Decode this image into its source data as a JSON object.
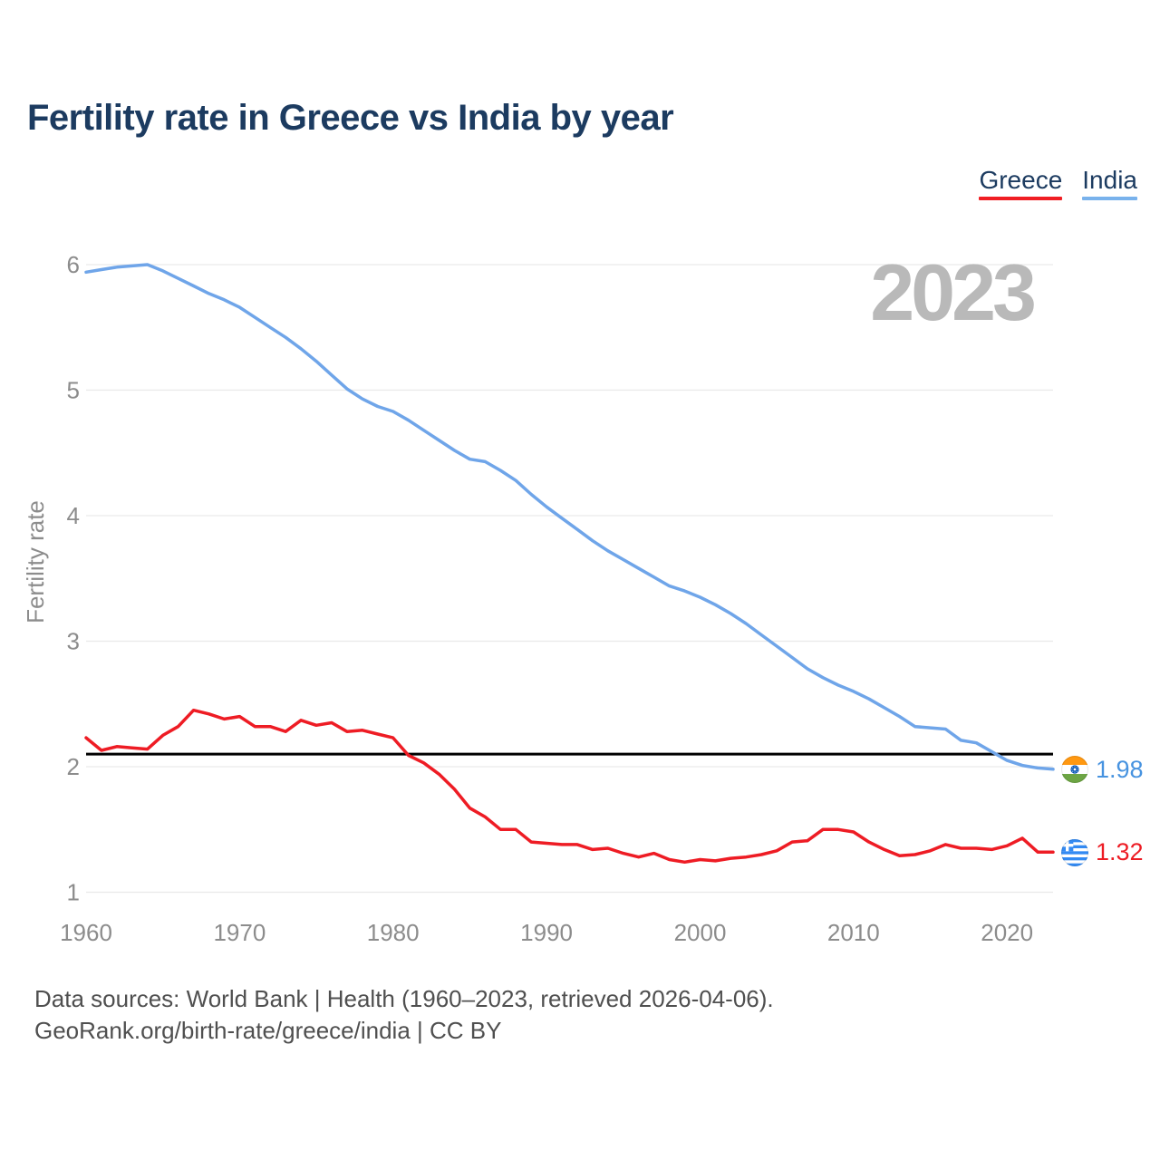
{
  "page": {
    "title": "Fertility rate in Greece vs India by year",
    "watermark_year": "2023"
  },
  "legend": {
    "items": [
      {
        "label": "Greece",
        "color": "#f01e23"
      },
      {
        "label": "India",
        "color": "#79b2ec"
      }
    ]
  },
  "reference_line": {
    "value": 2.1,
    "color": "#000000"
  },
  "end_labels": [
    {
      "series": "India",
      "value": "1.98",
      "text_color": "#4793e0",
      "flag": "india-flag-icon"
    },
    {
      "series": "Greece",
      "value": "1.32",
      "text_color": "#ed1c24",
      "flag": "greece-flag-icon"
    }
  ],
  "footer": {
    "line1": "Data sources: World Bank | Health (1960–2023, retrieved 2026-04-06).",
    "line2": "GeoRank.org/birth-rate/greece/india | CC BY"
  },
  "chart_data": {
    "type": "line",
    "title": "Fertility rate in Greece vs India by year",
    "xlabel": "",
    "ylabel": "Fertility rate",
    "xlim": [
      1960,
      2023
    ],
    "ylim": [
      1,
      6
    ],
    "x_ticks": [
      1960,
      1970,
      1980,
      1990,
      2000,
      2010,
      2020
    ],
    "y_ticks": [
      1,
      2,
      3,
      4,
      5,
      6
    ],
    "grid": "horizontal",
    "legend_position": "top-right",
    "years": [
      1960,
      1961,
      1962,
      1963,
      1964,
      1965,
      1966,
      1967,
      1968,
      1969,
      1970,
      1971,
      1972,
      1973,
      1974,
      1975,
      1976,
      1977,
      1978,
      1979,
      1980,
      1981,
      1982,
      1983,
      1984,
      1985,
      1986,
      1987,
      1988,
      1989,
      1990,
      1991,
      1992,
      1993,
      1994,
      1995,
      1996,
      1997,
      1998,
      1999,
      2000,
      2001,
      2002,
      2003,
      2004,
      2005,
      2006,
      2007,
      2008,
      2009,
      2010,
      2011,
      2012,
      2013,
      2014,
      2015,
      2016,
      2017,
      2018,
      2019,
      2020,
      2021,
      2022,
      2023
    ],
    "series": [
      {
        "name": "Greece",
        "color": "#ee1c24",
        "end_value": 1.32,
        "values": [
          2.23,
          2.13,
          2.16,
          2.15,
          2.14,
          2.25,
          2.32,
          2.45,
          2.42,
          2.38,
          2.4,
          2.32,
          2.32,
          2.28,
          2.37,
          2.33,
          2.35,
          2.28,
          2.29,
          2.26,
          2.23,
          2.09,
          2.03,
          1.94,
          1.82,
          1.67,
          1.6,
          1.5,
          1.5,
          1.4,
          1.39,
          1.38,
          1.38,
          1.34,
          1.35,
          1.31,
          1.28,
          1.31,
          1.26,
          1.24,
          1.26,
          1.25,
          1.27,
          1.28,
          1.3,
          1.33,
          1.4,
          1.41,
          1.5,
          1.5,
          1.48,
          1.4,
          1.34,
          1.29,
          1.3,
          1.33,
          1.38,
          1.35,
          1.35,
          1.34,
          1.37,
          1.43,
          1.32,
          1.32
        ]
      },
      {
        "name": "India",
        "color": "#6fa5e9",
        "end_value": 1.98,
        "values": [
          5.94,
          5.96,
          5.98,
          5.99,
          6.0,
          5.95,
          5.89,
          5.83,
          5.77,
          5.72,
          5.66,
          5.58,
          5.5,
          5.42,
          5.33,
          5.23,
          5.12,
          5.01,
          4.93,
          4.87,
          4.83,
          4.76,
          4.68,
          4.6,
          4.52,
          4.45,
          4.43,
          4.36,
          4.28,
          4.17,
          4.07,
          3.98,
          3.89,
          3.8,
          3.72,
          3.65,
          3.58,
          3.51,
          3.44,
          3.4,
          3.35,
          3.29,
          3.22,
          3.14,
          3.05,
          2.96,
          2.87,
          2.78,
          2.71,
          2.65,
          2.6,
          2.54,
          2.47,
          2.4,
          2.32,
          2.31,
          2.3,
          2.21,
          2.19,
          2.12,
          2.05,
          2.01,
          1.99,
          1.98
        ]
      }
    ]
  }
}
